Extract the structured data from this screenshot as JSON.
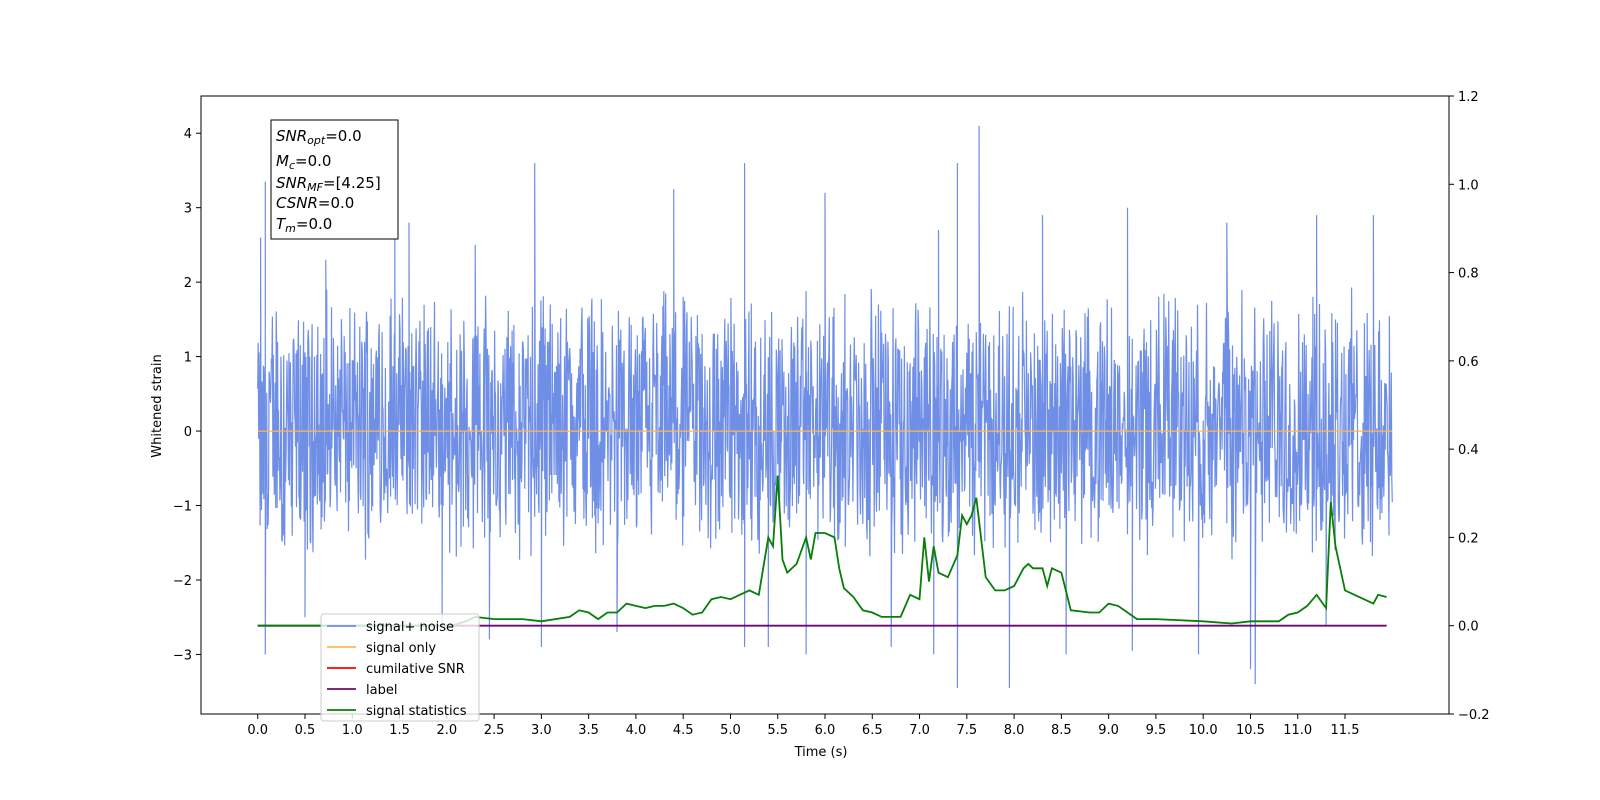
{
  "chart_data": {
    "type": "line",
    "title": "",
    "xlabel": "Time (s)",
    "ylabel": "Whitened strain",
    "y2label": "",
    "xlim": [
      -0.6,
      12.6
    ],
    "ylim": [
      -3.8,
      4.5
    ],
    "y2lim": [
      -0.2,
      1.2
    ],
    "x_ticks": [
      "0.0",
      "0.5",
      "1.0",
      "1.5",
      "2.0",
      "2.5",
      "3.0",
      "3.5",
      "4.0",
      "4.5",
      "5.0",
      "5.5",
      "6.0",
      "6.5",
      "7.0",
      "7.5",
      "8.0",
      "8.5",
      "9.0",
      "9.5",
      "10.0",
      "10.5",
      "11.0",
      "11.5"
    ],
    "y_ticks": [
      "4",
      "3",
      "2",
      "1",
      "0",
      "−1",
      "−2",
      "−3"
    ],
    "y_tick_values": [
      4,
      3,
      2,
      1,
      0,
      -1,
      -2,
      -3
    ],
    "y2_ticks": [
      "1.2",
      "1.0",
      "0.8",
      "0.6",
      "0.4",
      "0.2",
      "0.0",
      "−0.2"
    ],
    "y2_tick_values": [
      1.2,
      1.0,
      0.8,
      0.6,
      0.4,
      0.2,
      0.0,
      -0.2
    ],
    "grid": false,
    "legend_position": "lower-left",
    "colors": {
      "signal_noise": "#6f8ee6",
      "signal_only": "#ffb84d",
      "cumulative_snr": "#ff0000",
      "label": "#6e0a6e",
      "signal_statistics": "#087d08"
    },
    "legend": [
      {
        "label": "signal+ noise",
        "color": "#6f8ee6"
      },
      {
        "label": "signal only",
        "color": "#ffb84d"
      },
      {
        "label": "cumilative SNR",
        "color": "#ff0000"
      },
      {
        "label": "label",
        "color": "#6e0a6e"
      },
      {
        "label": "signal statistics",
        "color": "#087d08"
      }
    ],
    "stats_box": {
      "snr_opt": {
        "sym": "SNR",
        "sub": "opt",
        "val": "=0.0"
      },
      "mc": {
        "sym": "M",
        "sub": "c",
        "val": "=0.0"
      },
      "snr_mf": {
        "sym": "SNR",
        "sub": "MF",
        "val": "=[4.25]"
      },
      "csnr": {
        "sym": "CSNR",
        "sub": "",
        "val": "=0.0"
      },
      "tm": {
        "sym": "T",
        "sub": "m",
        "val": "=0.0"
      }
    },
    "noise": {
      "x_start": 0.0,
      "x_end": 12.0,
      "typical_range": [
        -1.8,
        2.0
      ],
      "spikes_up": [
        [
          0.03,
          2.6
        ],
        [
          0.08,
          3.35
        ],
        [
          0.72,
          2.3
        ],
        [
          1.45,
          2.7
        ],
        [
          1.6,
          2.8
        ],
        [
          2.3,
          2.5
        ],
        [
          2.93,
          3.6
        ],
        [
          4.4,
          3.25
        ],
        [
          5.15,
          3.6
        ],
        [
          6.0,
          3.2
        ],
        [
          7.2,
          2.7
        ],
        [
          7.4,
          3.6
        ],
        [
          7.63,
          4.1
        ],
        [
          8.3,
          2.9
        ],
        [
          9.2,
          3.0
        ],
        [
          10.25,
          2.8
        ],
        [
          11.2,
          2.9
        ],
        [
          11.8,
          2.9
        ]
      ],
      "spikes_down": [
        [
          0.08,
          -3.0
        ],
        [
          0.5,
          -2.5
        ],
        [
          1.95,
          -2.6
        ],
        [
          2.45,
          -2.8
        ],
        [
          3.0,
          -2.9
        ],
        [
          3.8,
          -2.7
        ],
        [
          5.15,
          -2.9
        ],
        [
          5.4,
          -2.9
        ],
        [
          5.8,
          -3.0
        ],
        [
          6.7,
          -2.9
        ],
        [
          7.15,
          -3.0
        ],
        [
          7.4,
          -3.45
        ],
        [
          7.95,
          -3.45
        ],
        [
          8.55,
          -3.0
        ],
        [
          9.25,
          -2.95
        ],
        [
          9.95,
          -3.0
        ],
        [
          10.5,
          -3.2
        ],
        [
          10.55,
          -3.4
        ],
        [
          11.3,
          -2.6
        ]
      ]
    },
    "series": [
      {
        "name": "signal only",
        "axis": "left",
        "x": [
          0.0,
          12.0
        ],
        "y": [
          0.0,
          0.0
        ]
      },
      {
        "name": "label",
        "axis": "right",
        "x": [
          0.0,
          11.94
        ],
        "y": [
          0.0,
          0.0
        ]
      },
      {
        "name": "signal statistics",
        "axis": "right",
        "x": [
          0.0,
          2.05,
          2.2,
          2.3,
          2.5,
          2.8,
          3.0,
          3.3,
          3.4,
          3.5,
          3.6,
          3.7,
          3.8,
          3.9,
          4.0,
          4.1,
          4.2,
          4.3,
          4.4,
          4.5,
          4.6,
          4.7,
          4.8,
          4.9,
          5.0,
          5.1,
          5.2,
          5.3,
          5.4,
          5.45,
          5.5,
          5.55,
          5.6,
          5.7,
          5.8,
          5.85,
          5.9,
          6.0,
          6.1,
          6.15,
          6.2,
          6.3,
          6.4,
          6.5,
          6.6,
          6.8,
          6.9,
          7.0,
          7.05,
          7.1,
          7.15,
          7.2,
          7.3,
          7.4,
          7.45,
          7.5,
          7.55,
          7.6,
          7.7,
          7.8,
          7.9,
          8.0,
          8.1,
          8.15,
          8.2,
          8.3,
          8.35,
          8.4,
          8.5,
          8.6,
          8.8,
          8.9,
          9.0,
          9.1,
          9.2,
          9.3,
          9.5,
          10.0,
          10.3,
          10.5,
          10.8,
          10.9,
          11.0,
          11.1,
          11.2,
          11.3,
          11.35,
          11.4,
          11.5,
          11.6,
          11.7,
          11.8,
          11.85,
          11.94
        ],
        "y": [
          0.0,
          0.0,
          0.01,
          0.02,
          0.015,
          0.015,
          0.01,
          0.02,
          0.035,
          0.03,
          0.015,
          0.03,
          0.03,
          0.05,
          0.045,
          0.04,
          0.045,
          0.045,
          0.05,
          0.04,
          0.025,
          0.03,
          0.06,
          0.065,
          0.06,
          0.07,
          0.08,
          0.07,
          0.2,
          0.18,
          0.34,
          0.15,
          0.12,
          0.14,
          0.2,
          0.15,
          0.21,
          0.21,
          0.2,
          0.13,
          0.085,
          0.065,
          0.035,
          0.03,
          0.02,
          0.02,
          0.07,
          0.06,
          0.2,
          0.1,
          0.18,
          0.12,
          0.11,
          0.16,
          0.25,
          0.23,
          0.25,
          0.29,
          0.11,
          0.08,
          0.08,
          0.09,
          0.13,
          0.14,
          0.13,
          0.13,
          0.09,
          0.13,
          0.12,
          0.035,
          0.03,
          0.03,
          0.05,
          0.045,
          0.03,
          0.015,
          0.015,
          0.01,
          0.005,
          0.01,
          0.01,
          0.025,
          0.03,
          0.045,
          0.07,
          0.04,
          0.28,
          0.18,
          0.08,
          0.07,
          0.06,
          0.05,
          0.07,
          0.065
        ]
      }
    ]
  }
}
